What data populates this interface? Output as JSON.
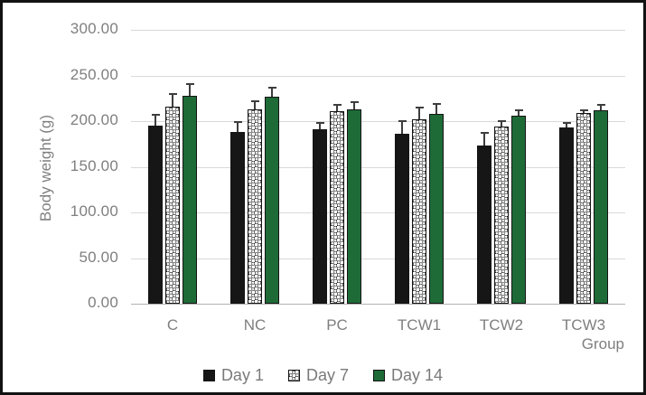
{
  "chart_data": {
    "type": "bar",
    "title": "",
    "xlabel": "Group",
    "ylabel": "Body weight (g)",
    "categories": [
      "C",
      "NC",
      "PC",
      "TCW1",
      "TCW2",
      "TCW3"
    ],
    "series": [
      {
        "name": "Day 1",
        "style": "day1",
        "color": "#161616",
        "values": [
          195,
          188,
          191,
          186,
          173,
          193
        ],
        "errors_plus": [
          13,
          12,
          8,
          15,
          15,
          6
        ]
      },
      {
        "name": "Day 7",
        "style": "day7",
        "color": "#ffffff",
        "pattern": "black-checker-dot",
        "values": [
          216,
          213,
          211,
          202,
          194,
          209
        ],
        "errors_plus": [
          15,
          10,
          8,
          14,
          7,
          4
        ]
      },
      {
        "name": "Day 14",
        "style": "day14",
        "color": "#1e6b37",
        "values": [
          228,
          227,
          213,
          208,
          206,
          212
        ],
        "errors_plus": [
          14,
          11,
          9,
          12,
          7,
          7
        ]
      }
    ],
    "ylim": [
      0,
      300
    ],
    "ytick_step": 50,
    "ytick_labels": [
      "0.00",
      "50.00",
      "100.00",
      "150.00",
      "200.00",
      "250.00",
      "300.00"
    ],
    "grid": true,
    "legend_position": "bottom",
    "error_bars": "upper-only"
  },
  "colors": {
    "gridline": "#d9d9d9",
    "axis_line": "#b3b3b3",
    "text": "#7f7f7f",
    "error_bar": "#3d3d3d",
    "bar_border": "#141414",
    "frame_border": "#121212",
    "background": "#ffffff"
  }
}
